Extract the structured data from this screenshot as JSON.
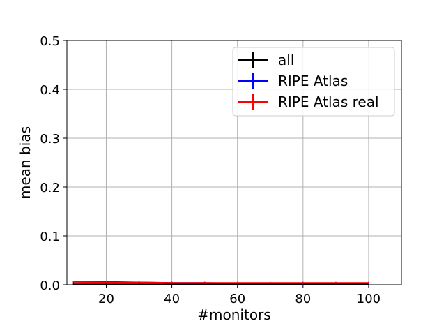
{
  "chart_data": {
    "type": "line",
    "title": "",
    "xlabel": "#monitors",
    "ylabel": "mean bias",
    "xlim": [
      8,
      110
    ],
    "ylim": [
      0,
      0.5
    ],
    "xticks": [
      20,
      40,
      60,
      80,
      100
    ],
    "yticks": [
      0.0,
      0.1,
      0.2,
      0.3,
      0.4,
      0.5
    ],
    "xtick_labels": [
      "20",
      "40",
      "60",
      "80",
      "100"
    ],
    "ytick_labels": [
      "0.0",
      "0.1",
      "0.2",
      "0.3",
      "0.4",
      "0.5"
    ],
    "grid": true,
    "legend_position": "top-right",
    "x": [
      10,
      20,
      30,
      40,
      50,
      60,
      70,
      80,
      90,
      100
    ],
    "series": [
      {
        "name": "all",
        "color": "#000000",
        "values": [
          0.001,
          0.001,
          0.001,
          0.001,
          0.001,
          0.001,
          0.001,
          0.001,
          0.001,
          0.001
        ],
        "error_bars": true
      },
      {
        "name": "RIPE Atlas",
        "color": "#0000ff",
        "values": [
          0.006,
          0.006,
          0.005,
          0.004,
          0.004,
          0.003,
          0.003,
          0.003,
          0.003,
          0.003
        ],
        "error_bars": true
      },
      {
        "name": "RIPE Atlas real",
        "color": "#ff0000",
        "values": [
          0.006,
          0.005,
          0.005,
          0.004,
          0.004,
          0.004,
          0.004,
          0.004,
          0.004,
          0.004
        ],
        "error_bars": true
      }
    ]
  }
}
